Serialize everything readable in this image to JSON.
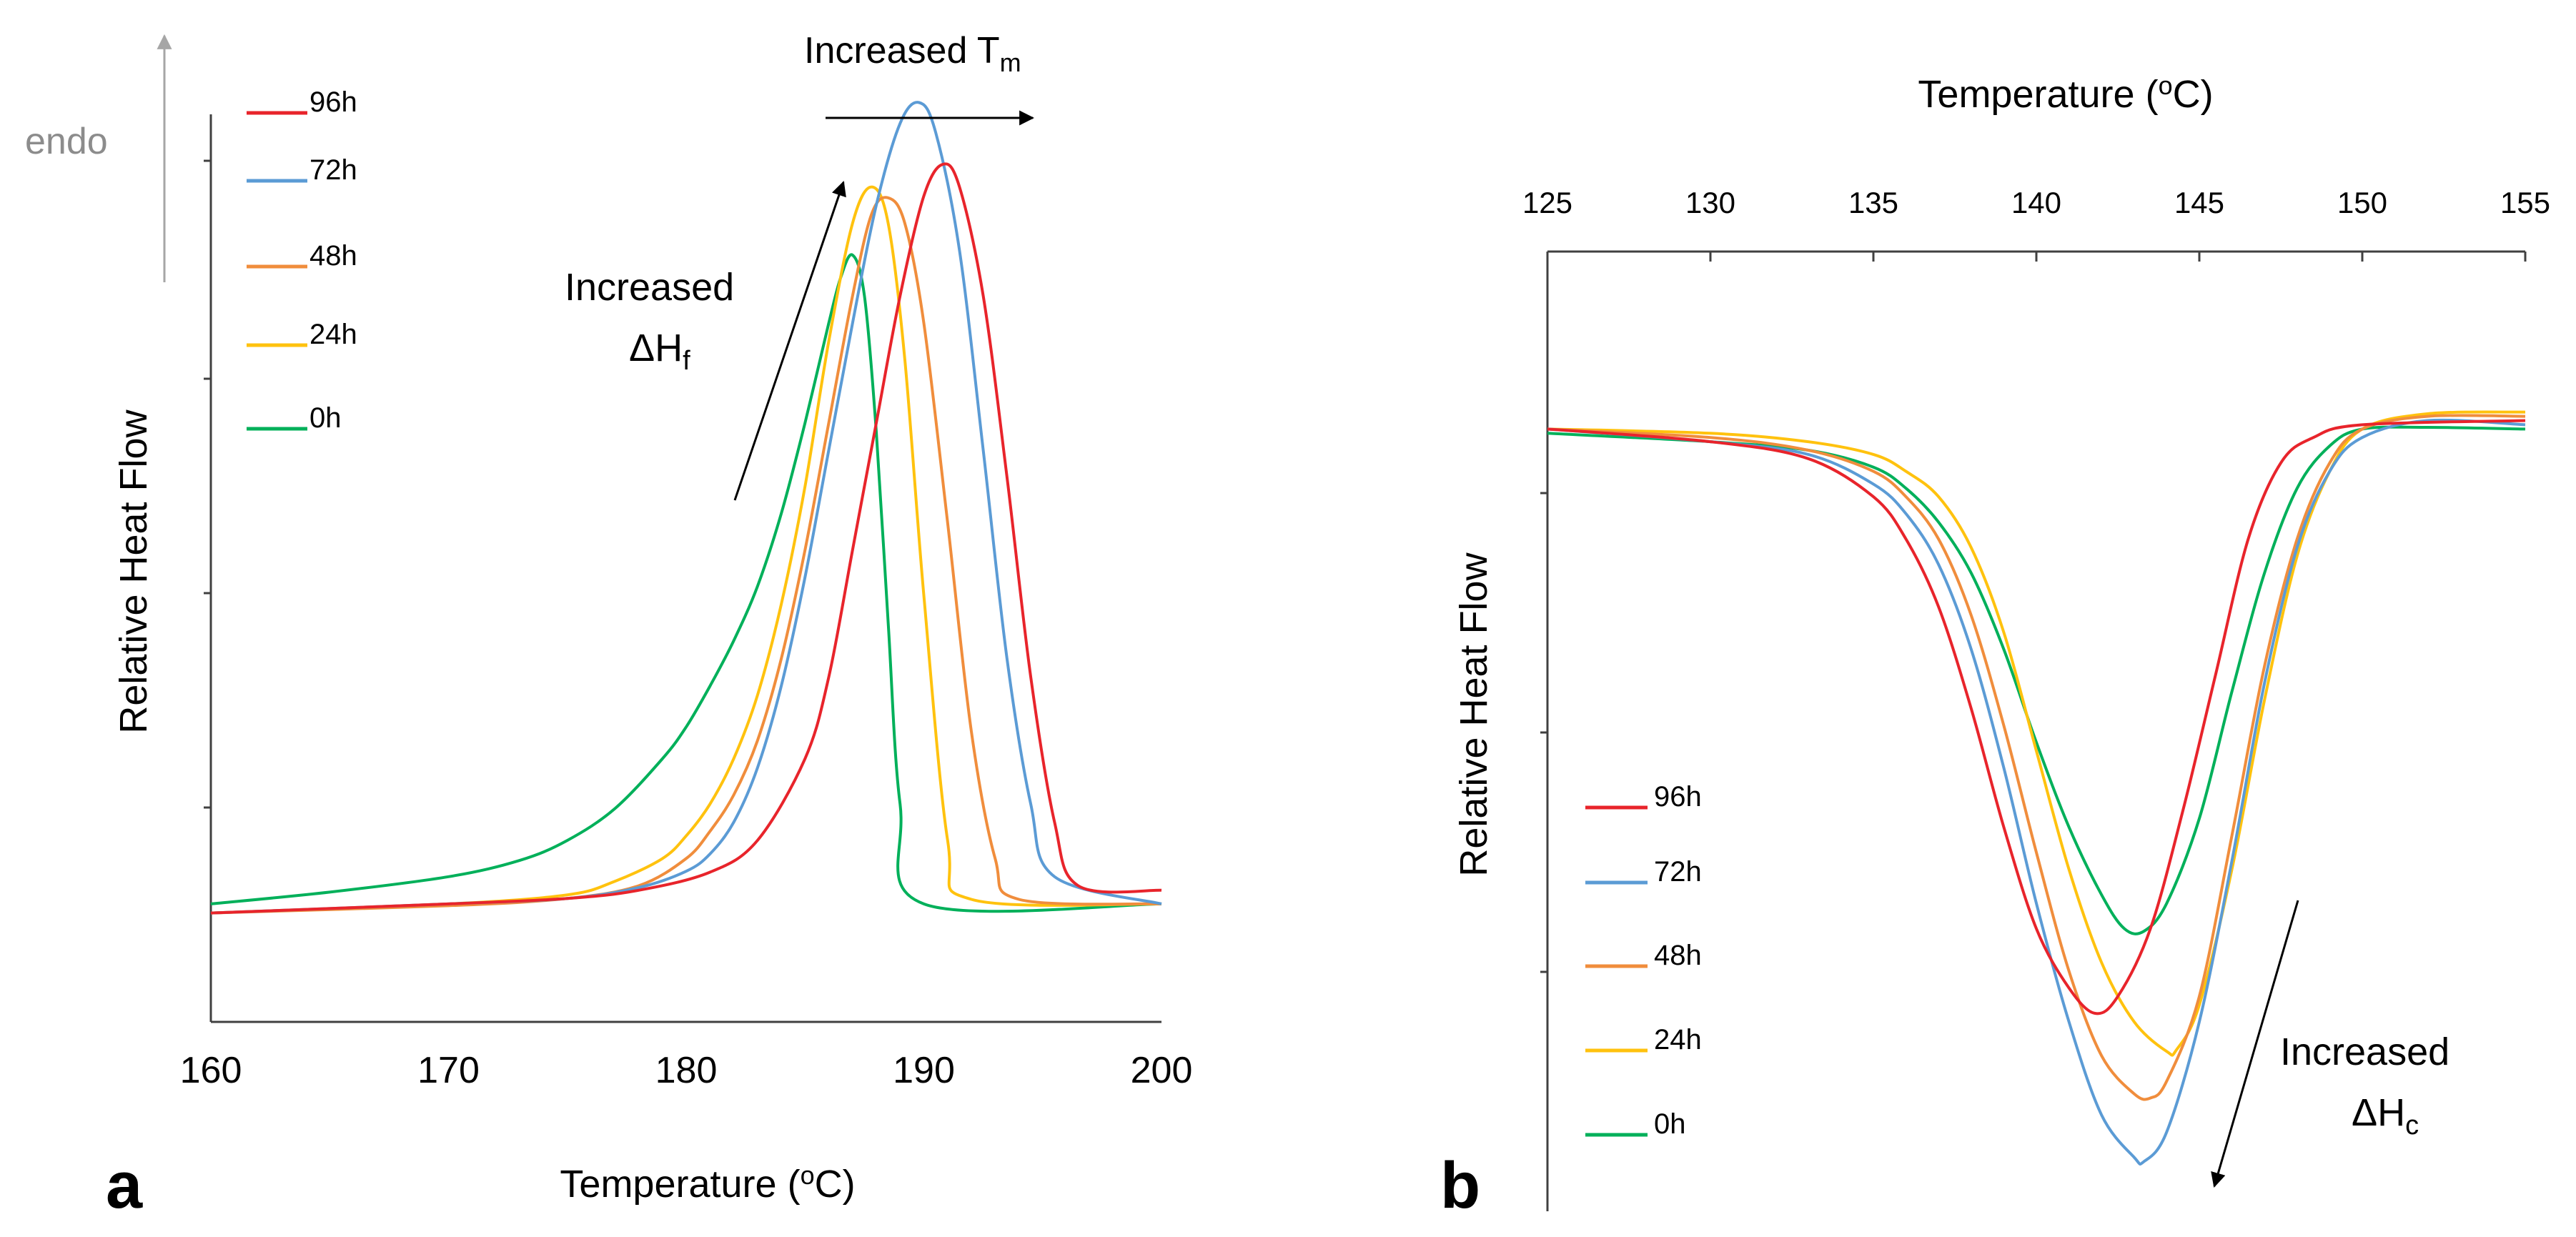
{
  "figure": {
    "panel_a_label": "a",
    "panel_b_label": "b"
  },
  "chart_data": [
    {
      "id": "a",
      "type": "line",
      "title": "",
      "xlabel_prefix": "Temperature (",
      "xlabel_sup": "o",
      "xlabel_suffix": "C)",
      "ylabel": "Relative Heat Flow",
      "xlim": [
        160,
        200
      ],
      "ylim": [
        0,
        100
      ],
      "xticks": [
        "160",
        "170",
        "180",
        "190",
        "200"
      ],
      "legend_position": "top-left",
      "annotations": {
        "endo": "endo",
        "tm_main": "Increased T",
        "tm_sub": "m",
        "dh_line1": "Increased",
        "dh_main": "ΔH",
        "dh_sub": "f"
      },
      "series": [
        {
          "name": "96h",
          "color": "#e8242b",
          "x": [
            160,
            170,
            175,
            178,
            181,
            183,
            185,
            186,
            187,
            188,
            189,
            190,
            190.8,
            191.5,
            192.5,
            193.5,
            194.5,
            195.5,
            196.5,
            200
          ],
          "y": [
            12,
            13,
            13.6,
            14.5,
            16.5,
            20,
            29,
            38,
            52,
            66,
            80,
            91,
            94.5,
            92,
            80,
            60,
            38,
            22,
            15,
            14.5
          ]
        },
        {
          "name": "72h",
          "color": "#5b9bd5",
          "x": [
            160,
            170,
            175,
            178,
            180,
            181,
            182,
            183,
            184,
            185,
            186,
            187,
            188,
            189,
            189.8,
            190.5,
            191.5,
            192.5,
            193.5,
            194.5,
            195.5,
            200
          ],
          "y": [
            12,
            13,
            13.6,
            14.8,
            16.6,
            18.5,
            22,
            28,
            37,
            49,
            63,
            77,
            90,
            99,
            101.3,
            98,
            85,
            63,
            40,
            24,
            16,
            13
          ]
        },
        {
          "name": "48h",
          "color": "#f08d3c",
          "x": [
            160,
            170,
            175,
            178,
            180,
            181,
            182,
            183,
            184,
            185,
            186,
            187,
            187.8,
            188.5,
            189.2,
            190,
            191,
            192,
            193,
            194,
            200
          ],
          "y": [
            12,
            12.8,
            13.6,
            15,
            18,
            21,
            25,
            31,
            40,
            52,
            66,
            80,
            89,
            90.8,
            88,
            77,
            55,
            32,
            18,
            13.5,
            13
          ]
        },
        {
          "name": "24h",
          "color": "#ffc20e",
          "x": [
            160,
            170,
            175,
            177,
            179,
            180,
            181,
            182,
            183,
            184,
            185,
            186,
            187,
            187.8,
            188.5,
            189.2,
            190,
            191,
            192,
            200
          ],
          "y": [
            12,
            13,
            14,
            15.5,
            18,
            20.5,
            24,
            29,
            36,
            46,
            59,
            75,
            88,
            92,
            88,
            73,
            47,
            20,
            13.5,
            13
          ]
        },
        {
          "name": "0h",
          "color": "#00b05a",
          "x": [
            160,
            165,
            170,
            173,
            175,
            177,
            179,
            180,
            181,
            182,
            183,
            184,
            185,
            186,
            186.5,
            187,
            187.5,
            188,
            188.5,
            189,
            190,
            200
          ],
          "y": [
            13,
            14.3,
            16,
            17.8,
            20,
            23.5,
            29,
            32.5,
            37,
            42,
            48,
            56,
            66,
            77,
            82,
            84.5,
            80,
            65,
            44,
            24,
            13,
            13
          ]
        }
      ]
    },
    {
      "id": "b",
      "type": "line",
      "title": "",
      "xlabel_prefix": "Temperature (",
      "xlabel_sup": "o",
      "xlabel_suffix": "C)",
      "ylabel": "Relative Heat Flow",
      "xlim": [
        125,
        155
      ],
      "ylim": [
        -100,
        0
      ],
      "xaxis_position": "top",
      "xticks": [
        "125",
        "130",
        "135",
        "140",
        "145",
        "150",
        "155"
      ],
      "legend_position": "bottom-left",
      "annotations": {
        "dh_line1": "Increased",
        "dh_main": "ΔH",
        "dh_sub": "c"
      },
      "series": [
        {
          "name": "96h",
          "color": "#e8242b",
          "x": [
            125,
            130,
            133,
            135,
            136,
            137,
            138,
            139,
            140,
            141,
            141.8,
            142.5,
            143.5,
            144.5,
            145.5,
            146.5,
            147.5,
            148.5,
            150,
            155
          ],
          "y": [
            -11,
            -12.5,
            -14.5,
            -19,
            -24,
            -32,
            -44,
            -58,
            -70,
            -77,
            -80,
            -78,
            -70,
            -56,
            -40,
            -24,
            -15,
            -12,
            -10.5,
            -10
          ]
        },
        {
          "name": "72h",
          "color": "#5b9bd5",
          "x": [
            125,
            130,
            133,
            135,
            136,
            137,
            138,
            139,
            140,
            141,
            142,
            143,
            143.3,
            144,
            145,
            146,
            147,
            148,
            149,
            150,
            152,
            155
          ],
          "y": [
            -11,
            -12.5,
            -14,
            -17.5,
            -21,
            -27,
            -37,
            -51,
            -67,
            -81,
            -92,
            -97,
            -97.5,
            -94,
            -81,
            -62,
            -41,
            -25,
            -16,
            -12,
            -10,
            -10.5
          ]
        },
        {
          "name": "48h",
          "color": "#f08d3c",
          "x": [
            125,
            130,
            133,
            135,
            136,
            137,
            138,
            139,
            140,
            141,
            142,
            143,
            143.5,
            144,
            145,
            146,
            147,
            148,
            149,
            150,
            152,
            155
          ],
          "y": [
            -11,
            -12,
            -13.5,
            -16,
            -19,
            -24,
            -33,
            -46,
            -61,
            -75,
            -85,
            -89.5,
            -90,
            -88,
            -78,
            -59,
            -39,
            -24,
            -15,
            -11,
            -9.5,
            -9.5
          ]
        },
        {
          "name": "24h",
          "color": "#ffc20e",
          "x": [
            125,
            130,
            133,
            135,
            136,
            137,
            138,
            139,
            140,
            141,
            142,
            143,
            144,
            144.3,
            145,
            146,
            147,
            148,
            149,
            150,
            152,
            155
          ],
          "y": [
            -11,
            -11.5,
            -12.5,
            -14,
            -16,
            -19,
            -25,
            -35,
            -49,
            -63,
            -74,
            -81,
            -84.5,
            -84.3,
            -79,
            -63,
            -43,
            -26,
            -16,
            -11,
            -9.2,
            -9
          ]
        },
        {
          "name": "0h",
          "color": "#00b05a",
          "x": [
            125,
            130,
            133,
            135,
            136,
            137,
            138,
            139,
            140,
            141,
            142,
            142.7,
            143.3,
            144,
            145,
            146,
            147,
            148,
            149,
            150,
            152,
            155
          ],
          "y": [
            -11.5,
            -12.5,
            -13.5,
            -15.5,
            -18,
            -22,
            -28,
            -37,
            -48,
            -58,
            -66,
            -70,
            -70.3,
            -67,
            -57,
            -42,
            -28,
            -18,
            -13,
            -11,
            -10.8,
            -11
          ]
        }
      ]
    }
  ]
}
